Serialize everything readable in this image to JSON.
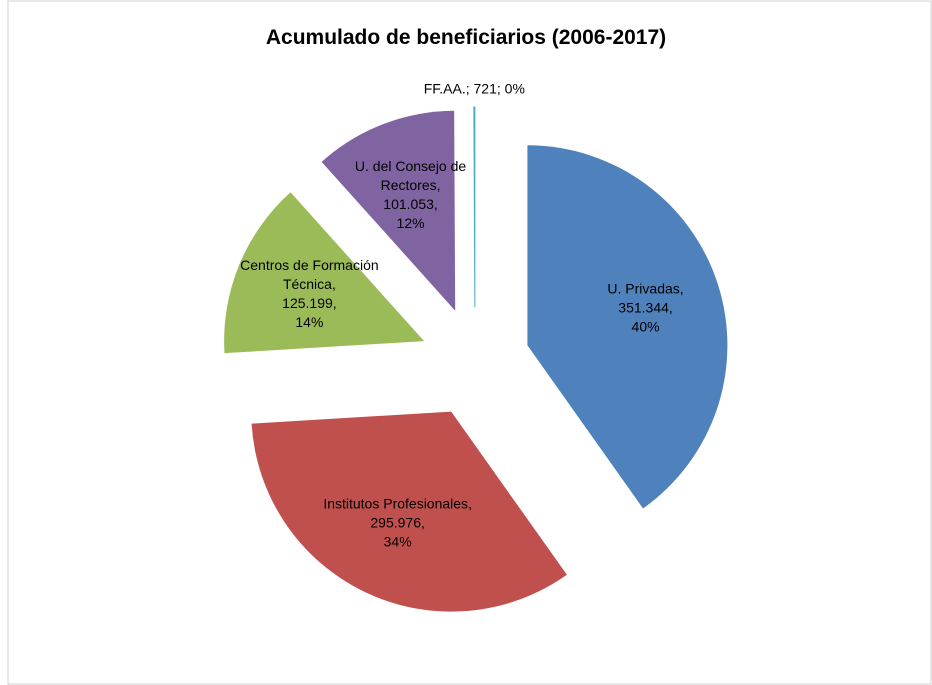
{
  "chart_data": {
    "type": "pie",
    "title": "Acumulado de beneficiarios (2006-2017)",
    "categories": [
      "U. Privadas",
      "Institutos Profesionales",
      "Centros de Formación Técnica",
      "U. del Consejo de Rectores",
      "FF.AA."
    ],
    "values": [
      351344,
      295976,
      125199,
      101053,
      721
    ],
    "value_labels": [
      "351.344",
      "295.976",
      "125.199",
      "101.053",
      "721"
    ],
    "percents": [
      40,
      34,
      14,
      12,
      0
    ],
    "percent_labels": [
      "40%",
      "34%",
      "14%",
      "12%",
      "0%"
    ],
    "label_separators": [
      ",",
      ",",
      ",",
      ",",
      ";"
    ],
    "colors": [
      "#4f81bd",
      "#c0504d",
      "#9bbb59",
      "#8064a2",
      "#4bacc6"
    ]
  }
}
